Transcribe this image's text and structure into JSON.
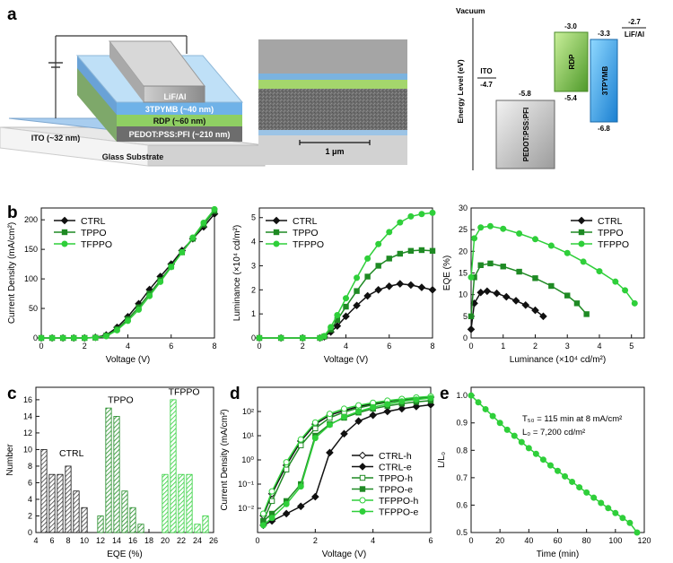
{
  "panel_labels": {
    "a": "a",
    "b": "b",
    "c": "c",
    "d": "d",
    "e": "e"
  },
  "panel_a": {
    "device_layers": {
      "cathode": "LiF/Al",
      "etl": "3TPYMB (~40 nm)",
      "eml": "RDP (~60 nm)",
      "hil": "PEDOT:PSS:PFI (~210 nm)",
      "anode": "ITO (~32 nm)",
      "substrate": "Glass Substrate"
    },
    "sem_scale_label": "1 μm",
    "energy": {
      "vacuum": "Vacuum",
      "ylabel": "Energy Level (eV)",
      "ito": {
        "name": "ITO",
        "value": "-4.7"
      },
      "pedot": {
        "name": "PEDOT:PSS:PFI",
        "top": "-5.8"
      },
      "rdp": {
        "name": "RDP",
        "top": "-3.0",
        "bottom": "-5.4"
      },
      "tpymb": {
        "name": "3TPYMB",
        "top": "-3.3",
        "bottom": "-6.8"
      },
      "cathode": {
        "name": "LiF/Al",
        "value": "-2.7"
      }
    }
  },
  "colors": {
    "ctrl": "#111111",
    "tppo": "#1f8a24",
    "tfppo": "#2fcf3a"
  },
  "legends": {
    "jv": [
      "CTRL",
      "TPPO",
      "TFPPO"
    ],
    "hole_electron": [
      "CTRL-h",
      "CTRL-e",
      "TPPO-h",
      "TPPO-e",
      "TFPPO-h",
      "TFPPO-e"
    ]
  },
  "chart_data": [
    {
      "id": "b1",
      "type": "line",
      "xlabel": "Voltage (V)",
      "ylabel": "Current Density (mA/cm²)",
      "xlim": [
        0,
        8
      ],
      "ylim": [
        0,
        220
      ],
      "xticks": [
        "0",
        "2",
        "4",
        "6",
        "8"
      ],
      "yticks": [
        "0",
        "50",
        "100",
        "150",
        "200"
      ],
      "x": [
        0,
        0.5,
        1,
        1.5,
        2,
        2.5,
        3,
        3.5,
        4,
        4.5,
        5,
        5.5,
        6,
        6.5,
        7,
        7.5,
        8
      ],
      "series": [
        {
          "name": "CTRL",
          "values": [
            0,
            0,
            0,
            0,
            0,
            1,
            5,
            18,
            36,
            58,
            82,
            104,
            125,
            148,
            168,
            188,
            210
          ]
        },
        {
          "name": "TPPO",
          "values": [
            0,
            0,
            0,
            0,
            0,
            0.5,
            4,
            15,
            32,
            52,
            75,
            98,
            121,
            145,
            168,
            192,
            215
          ]
        },
        {
          "name": "TFPPO",
          "values": [
            0,
            0,
            0,
            0,
            0,
            0.5,
            3,
            13,
            29,
            48,
            71,
            95,
            120,
            145,
            170,
            195,
            218
          ]
        }
      ]
    },
    {
      "id": "b2",
      "type": "line",
      "xlabel": "Voltage (V)",
      "ylabel": "Luminance (×10⁴ cd/m²)",
      "xlim": [
        0,
        8
      ],
      "ylim": [
        0,
        5.4
      ],
      "xticks": [
        "0",
        "2",
        "4",
        "6",
        "8"
      ],
      "yticks": [
        "0",
        "1",
        "2",
        "3",
        "4",
        "5"
      ],
      "x": [
        0,
        1,
        2,
        2.8,
        3,
        3.3,
        3.6,
        4,
        4.5,
        5,
        5.5,
        6,
        6.5,
        7,
        7.5,
        8
      ],
      "series": [
        {
          "name": "CTRL",
          "values": [
            0,
            0,
            0,
            0,
            0.05,
            0.25,
            0.5,
            0.9,
            1.35,
            1.75,
            2.0,
            2.15,
            2.25,
            2.2,
            2.1,
            2.0
          ]
        },
        {
          "name": "TPPO",
          "values": [
            0,
            0,
            0,
            0,
            0.06,
            0.35,
            0.75,
            1.3,
            1.95,
            2.55,
            3.0,
            3.3,
            3.5,
            3.62,
            3.65,
            3.62
          ]
        },
        {
          "name": "TFPPO",
          "values": [
            0,
            0,
            0,
            0,
            0.08,
            0.45,
            0.95,
            1.65,
            2.5,
            3.3,
            3.9,
            4.4,
            4.8,
            5.05,
            5.15,
            5.2
          ]
        }
      ]
    },
    {
      "id": "b3",
      "type": "line",
      "xlabel": "Luminance (×10⁴ cd/m²)",
      "ylabel": "EQE (%)",
      "xlim": [
        0,
        5.4
      ],
      "ylim": [
        0,
        30
      ],
      "xticks": [
        "0",
        "1",
        "2",
        "3",
        "4",
        "5"
      ],
      "yticks": [
        "0",
        "5",
        "10",
        "15",
        "20",
        "25",
        "30"
      ],
      "series": [
        {
          "name": "CTRL",
          "x": [
            0,
            0.1,
            0.3,
            0.5,
            0.8,
            1.1,
            1.4,
            1.7,
            2.0,
            2.25
          ],
          "values": [
            2,
            8,
            10.5,
            10.8,
            10.3,
            9.5,
            8.6,
            7.6,
            6.4,
            5
          ]
        },
        {
          "name": "TPPO",
          "x": [
            0,
            0.1,
            0.3,
            0.6,
            1.0,
            1.5,
            2.0,
            2.5,
            3.0,
            3.3,
            3.6
          ],
          "values": [
            5,
            14,
            16.8,
            17.2,
            16.5,
            15.3,
            13.8,
            12,
            9.8,
            8,
            5.5
          ]
        },
        {
          "name": "TFPPO",
          "x": [
            0,
            0.1,
            0.3,
            0.6,
            1.0,
            1.5,
            2.0,
            2.5,
            3.0,
            3.5,
            4.0,
            4.5,
            4.8,
            5.1
          ],
          "values": [
            14,
            23,
            25.5,
            25.8,
            25.2,
            24.1,
            22.8,
            21.3,
            19.6,
            17.6,
            15.4,
            13,
            11,
            8
          ]
        }
      ]
    },
    {
      "id": "c",
      "type": "bar",
      "xlabel": "EQE (%)",
      "ylabel": "Number",
      "xlim": [
        4,
        26
      ],
      "ylim": [
        0,
        17.5
      ],
      "xticks": [
        "4",
        "6",
        "8",
        "10",
        "12",
        "14",
        "16",
        "18",
        "20",
        "22",
        "24",
        "26"
      ],
      "yticks": [
        "0",
        "2",
        "4",
        "6",
        "8",
        "10",
        "12",
        "14",
        "16"
      ],
      "group_labels": [
        "CTRL",
        "TPPO",
        "TFPPO"
      ],
      "series": [
        {
          "name": "CTRL",
          "x": [
            5,
            6,
            7,
            8,
            9,
            10
          ],
          "values": [
            10,
            7,
            7,
            8,
            5,
            3
          ]
        },
        {
          "name": "TPPO",
          "x": [
            12,
            13,
            14,
            15,
            16,
            17
          ],
          "values": [
            2,
            15,
            14,
            5,
            3,
            1
          ]
        },
        {
          "name": "TFPPO",
          "x": [
            20,
            21,
            22,
            23,
            24,
            25
          ],
          "values": [
            7,
            16,
            7,
            7,
            1,
            2
          ]
        }
      ]
    },
    {
      "id": "d",
      "type": "line",
      "xlabel": "Voltage (V)",
      "ylabel": "Current Density (mA/cm²)",
      "xlim": [
        0,
        6
      ],
      "ylim": [
        0.001,
        1000
      ],
      "yscale": "log",
      "xticks": [
        "0",
        "2",
        "4",
        "6"
      ],
      "yticks": [
        "10⁻²",
        "10⁻¹",
        "10⁰",
        "10¹",
        "10²"
      ],
      "x": [
        0.2,
        0.5,
        1,
        1.5,
        2,
        2.5,
        3,
        3.5,
        4,
        4.5,
        5,
        5.5,
        6
      ],
      "series": [
        {
          "name": "CTRL-h",
          "values": [
            0.005,
            0.04,
            0.6,
            6,
            30,
            70,
            110,
            160,
            210,
            260,
            310,
            350,
            390
          ]
        },
        {
          "name": "CTRL-e",
          "values": [
            0.002,
            0.003,
            0.006,
            0.012,
            0.03,
            2,
            12,
            40,
            70,
            100,
            130,
            160,
            190
          ]
        },
        {
          "name": "TPPO-h",
          "values": [
            0.003,
            0.02,
            0.4,
            4,
            20,
            55,
            95,
            140,
            190,
            240,
            290,
            330,
            370
          ]
        },
        {
          "name": "TPPO-e",
          "values": [
            0.003,
            0.006,
            0.02,
            0.1,
            10,
            30,
            55,
            90,
            130,
            170,
            210,
            250,
            280
          ]
        },
        {
          "name": "TFPPO-h",
          "values": [
            0.006,
            0.05,
            0.8,
            7,
            35,
            80,
            130,
            180,
            230,
            280,
            330,
            380,
            420
          ]
        },
        {
          "name": "TFPPO-e",
          "values": [
            0.002,
            0.004,
            0.015,
            0.08,
            8,
            28,
            60,
            100,
            150,
            200,
            260,
            310,
            360
          ]
        }
      ]
    },
    {
      "id": "e",
      "type": "line",
      "xlabel": "Time (min)",
      "ylabel": "L/L₀",
      "xlim": [
        0,
        120
      ],
      "ylim": [
        0.5,
        1.03
      ],
      "xticks": [
        "0",
        "20",
        "40",
        "60",
        "80",
        "100",
        "120"
      ],
      "yticks": [
        "0.5",
        "0.6",
        "0.7",
        "0.8",
        "0.9",
        "1.0"
      ],
      "annotations": [
        "T₅₀ = 115 min at 8 mA/cm²",
        "L₀ = 7,200 cd/m²"
      ],
      "x": [
        0,
        5,
        10,
        15,
        20,
        25,
        30,
        35,
        40,
        45,
        50,
        55,
        60,
        65,
        70,
        75,
        80,
        85,
        90,
        95,
        100,
        105,
        110,
        115
      ],
      "series": [
        {
          "name": "TFPPO",
          "values": [
            1.0,
            0.975,
            0.95,
            0.925,
            0.9,
            0.875,
            0.853,
            0.83,
            0.808,
            0.787,
            0.766,
            0.745,
            0.725,
            0.705,
            0.685,
            0.665,
            0.646,
            0.627,
            0.608,
            0.589,
            0.571,
            0.553,
            0.535,
            0.5
          ]
        }
      ]
    }
  ]
}
